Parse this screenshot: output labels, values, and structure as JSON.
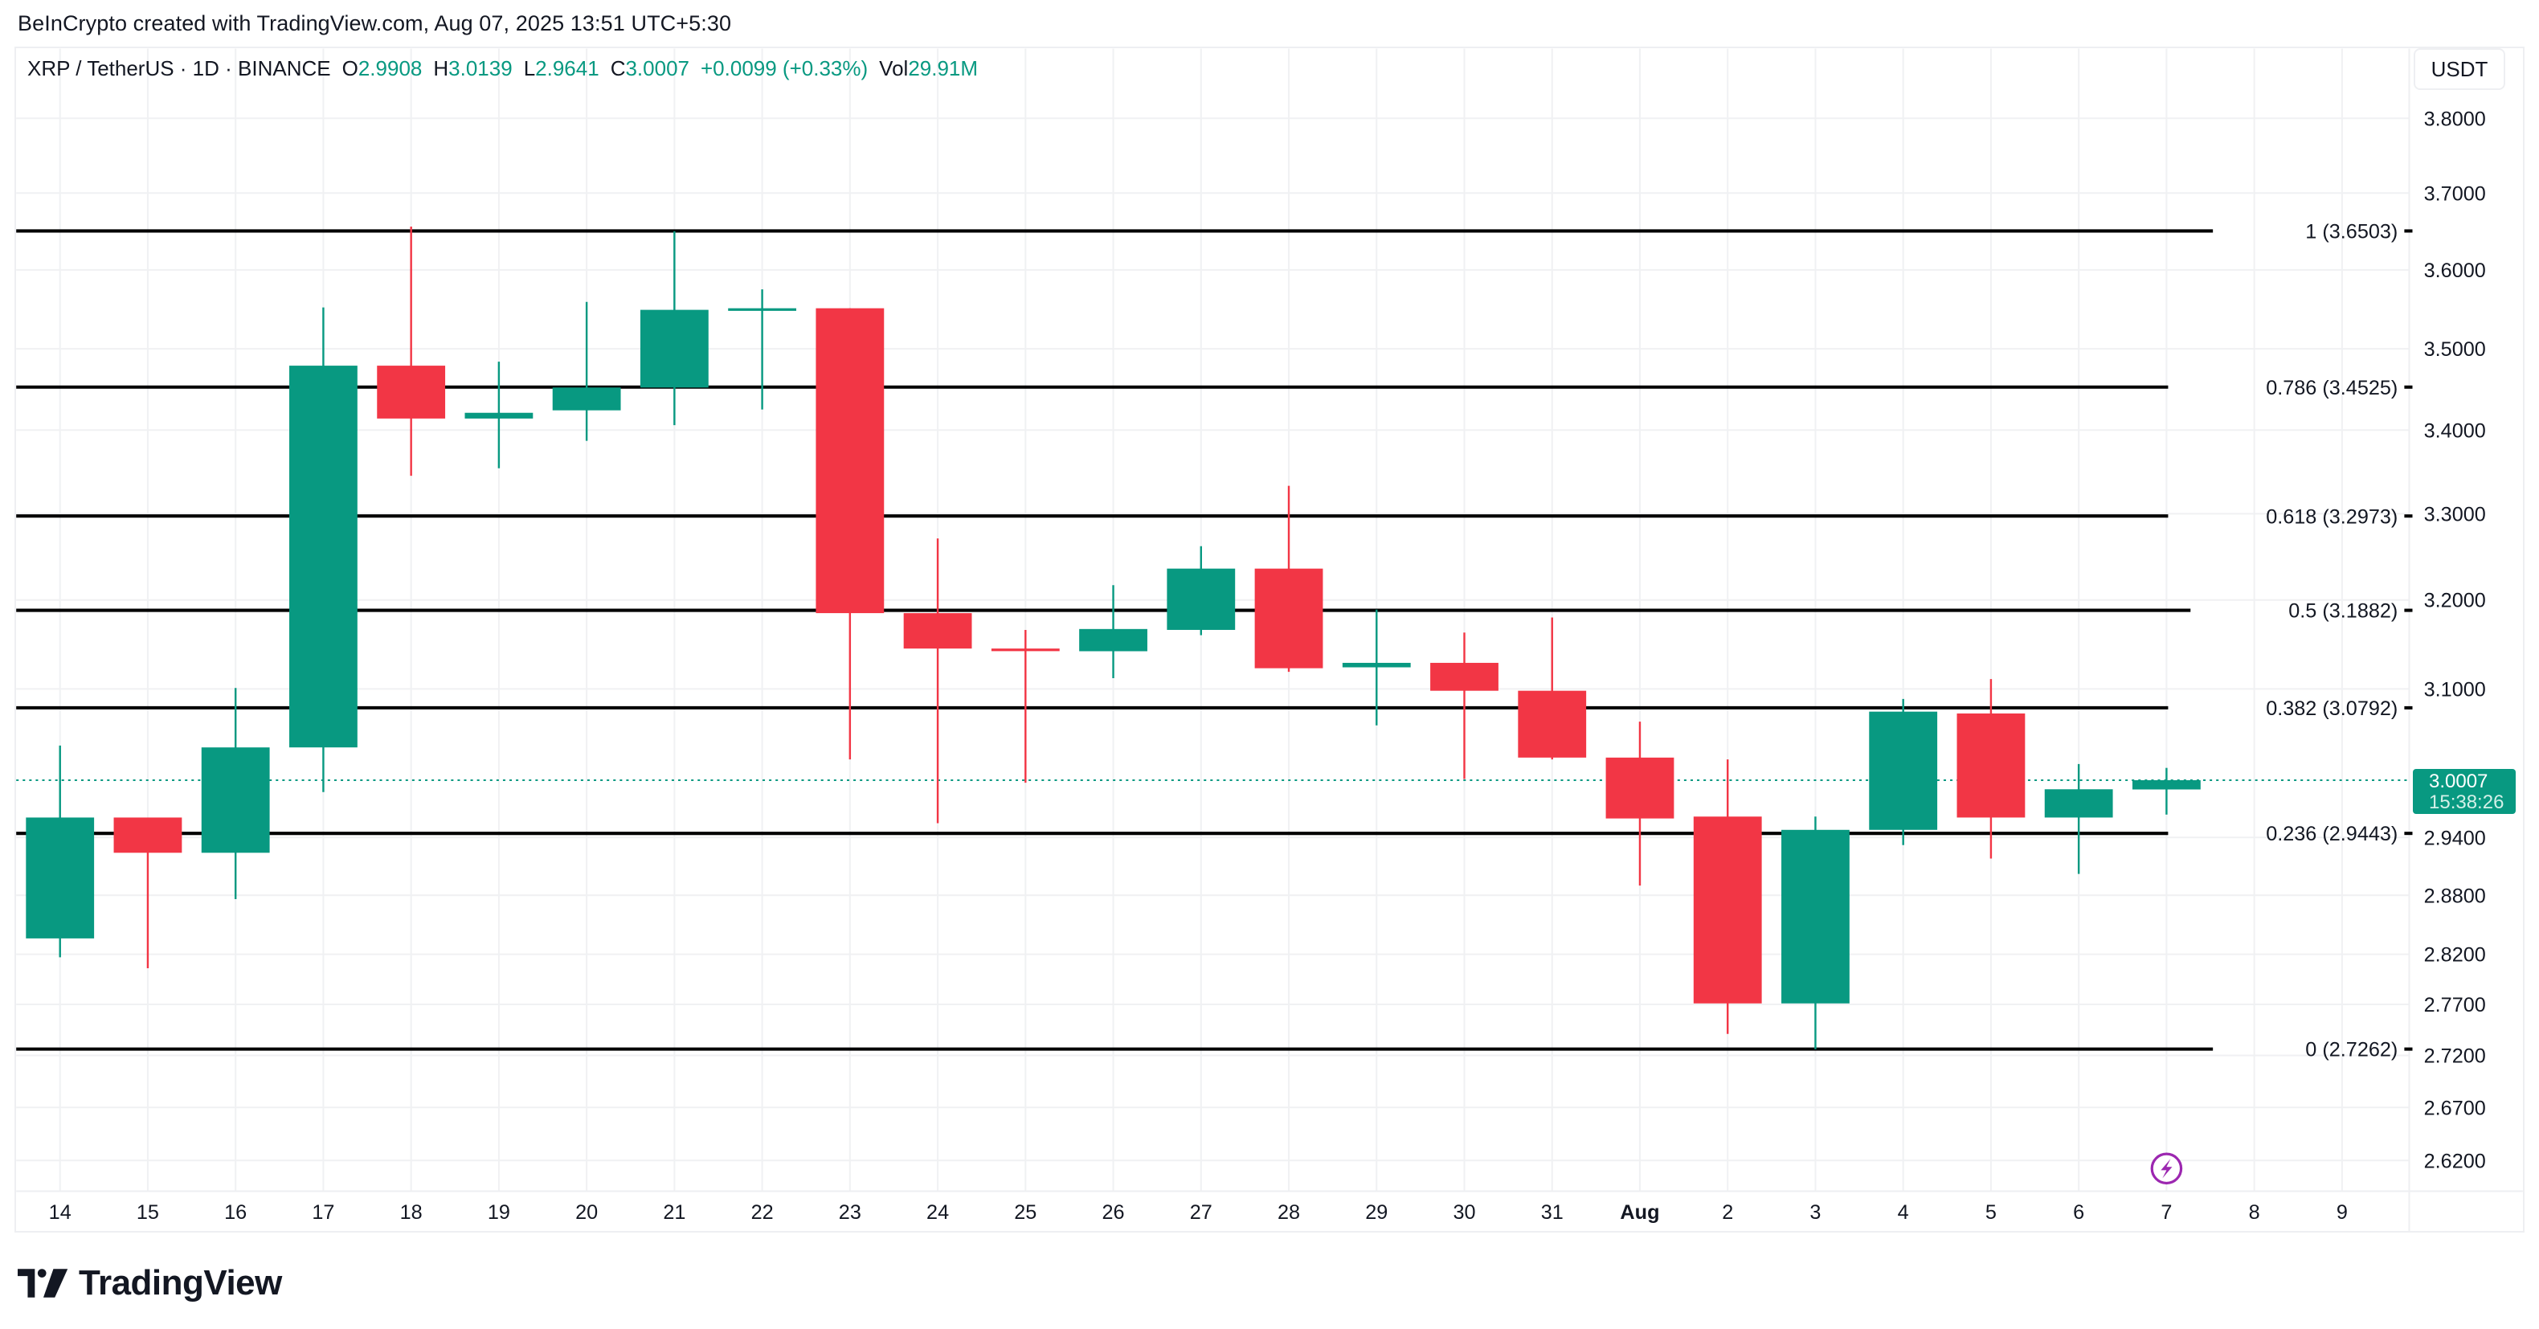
{
  "header": {
    "credit": "BeInCrypto created with TradingView.com, Aug 07, 2025 13:51 UTC+5:30"
  },
  "legend": {
    "symbol": "XRP / TetherUS · 1D · BINANCE",
    "open_label": "O",
    "open": "2.9908",
    "high_label": "H",
    "high": "3.0139",
    "low_label": "L",
    "low": "2.9641",
    "close_label": "C",
    "close": "3.0007",
    "change": "+0.0099 (+0.33%)",
    "vol_label": "Vol",
    "volume": "29.91M"
  },
  "currency_button": "USDT",
  "last_price_tag": {
    "price": "3.0007",
    "countdown": "15:38:26"
  },
  "logo": {
    "icon": "tradingview-logo-icon",
    "text": "TradingView"
  },
  "colors": {
    "up": "#089981",
    "down": "#f23645",
    "fib_line": "#000000",
    "grid": "#f0f1f3",
    "event_icon": "#9c27b0"
  },
  "event_marker": {
    "icon": "lightning-icon",
    "day": "7"
  },
  "chart_data": {
    "type": "candlestick",
    "title": "XRP / TetherUS · 1D · BINANCE",
    "xlabel": "",
    "ylabel": "USDT",
    "scale": "log",
    "ylim": [
      2.6,
      3.82
    ],
    "grid": true,
    "x_ticks": [
      "14",
      "15",
      "16",
      "17",
      "18",
      "19",
      "20",
      "21",
      "22",
      "23",
      "24",
      "25",
      "26",
      "27",
      "28",
      "29",
      "30",
      "31",
      "Aug",
      "2",
      "3",
      "4",
      "5",
      "6",
      "7",
      "8",
      "9"
    ],
    "y_ticks": [
      "3.8000",
      "3.7000",
      "3.6000",
      "3.5000",
      "3.4000",
      "3.3000",
      "3.2000",
      "3.1000",
      "2.9400",
      "2.8800",
      "2.8200",
      "2.7700",
      "2.7200",
      "2.6700",
      "2.6200"
    ],
    "candles": [
      {
        "date": "Jul 14",
        "o": 2.836,
        "h": 3.038,
        "l": 2.817,
        "c": 2.961
      },
      {
        "date": "Jul 15",
        "o": 2.961,
        "h": 2.961,
        "l": 2.806,
        "c": 2.924
      },
      {
        "date": "Jul 16",
        "o": 2.924,
        "h": 3.101,
        "l": 2.876,
        "c": 3.036
      },
      {
        "date": "Jul 17",
        "o": 3.036,
        "h": 3.552,
        "l": 2.988,
        "c": 3.479
      },
      {
        "date": "Jul 18",
        "o": 3.479,
        "h": 3.656,
        "l": 3.345,
        "c": 3.414
      },
      {
        "date": "Jul 19",
        "o": 3.414,
        "h": 3.484,
        "l": 3.354,
        "c": 3.421
      },
      {
        "date": "Jul 20",
        "o": 3.424,
        "h": 3.559,
        "l": 3.387,
        "c": 3.452
      },
      {
        "date": "Jul 21",
        "o": 3.452,
        "h": 3.65,
        "l": 3.406,
        "c": 3.549
      },
      {
        "date": "Jul 22",
        "o": 3.549,
        "h": 3.575,
        "l": 3.425,
        "c": 3.551
      },
      {
        "date": "Jul 23",
        "o": 3.551,
        "h": 3.551,
        "l": 3.023,
        "c": 3.185
      },
      {
        "date": "Jul 24",
        "o": 3.185,
        "h": 3.271,
        "l": 2.955,
        "c": 3.145
      },
      {
        "date": "Jul 25",
        "o": 3.145,
        "h": 3.166,
        "l": 2.998,
        "c": 3.143
      },
      {
        "date": "Jul 26",
        "o": 3.142,
        "h": 3.217,
        "l": 3.112,
        "c": 3.167
      },
      {
        "date": "Jul 27",
        "o": 3.166,
        "h": 3.262,
        "l": 3.16,
        "c": 3.236
      },
      {
        "date": "Jul 28",
        "o": 3.236,
        "h": 3.333,
        "l": 3.119,
        "c": 3.123
      },
      {
        "date": "Jul 29",
        "o": 3.124,
        "h": 3.189,
        "l": 3.06,
        "c": 3.129
      },
      {
        "date": "Jul 30",
        "o": 3.129,
        "h": 3.163,
        "l": 3.002,
        "c": 3.098
      },
      {
        "date": "Jul 31",
        "o": 3.098,
        "h": 3.18,
        "l": 3.023,
        "c": 3.025
      },
      {
        "date": "Aug 1",
        "o": 3.025,
        "h": 3.064,
        "l": 2.89,
        "c": 2.96
      },
      {
        "date": "Aug 2",
        "o": 2.962,
        "h": 3.023,
        "l": 2.741,
        "c": 2.771
      },
      {
        "date": "Aug 3",
        "o": 2.771,
        "h": 2.962,
        "l": 2.726,
        "c": 2.948
      },
      {
        "date": "Aug 4",
        "o": 2.948,
        "h": 3.089,
        "l": 2.932,
        "c": 3.075
      },
      {
        "date": "Aug 5",
        "o": 3.073,
        "h": 3.111,
        "l": 2.918,
        "c": 2.961
      },
      {
        "date": "Aug 6",
        "o": 2.961,
        "h": 3.018,
        "l": 2.902,
        "c": 2.991
      },
      {
        "date": "Aug 7",
        "o": 2.9908,
        "h": 3.0139,
        "l": 2.9641,
        "c": 3.0007
      }
    ],
    "fib_levels": [
      {
        "ratio": "1",
        "price": 3.6503,
        "label": "1 (3.6503)"
      },
      {
        "ratio": "0.786",
        "price": 3.4525,
        "label": "0.786 (3.4525)"
      },
      {
        "ratio": "0.618",
        "price": 3.2973,
        "label": "0.618 (3.2973)"
      },
      {
        "ratio": "0.5",
        "price": 3.1882,
        "label": "0.5 (3.1882)"
      },
      {
        "ratio": "0.382",
        "price": 3.0792,
        "label": "0.382 (3.0792)"
      },
      {
        "ratio": "0.236",
        "price": 2.9443,
        "label": "0.236 (2.9443)"
      },
      {
        "ratio": "0",
        "price": 2.7262,
        "label": "0 (2.7262)"
      }
    ],
    "last_price": 3.0007
  }
}
